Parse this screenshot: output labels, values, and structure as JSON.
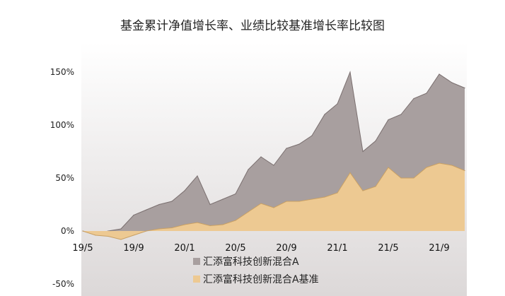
{
  "chart_data": {
    "type": "area",
    "title": "基金累计净值增长率、业绩比较基准增长率比较图",
    "xlabel": "",
    "ylabel": "",
    "ylim": [
      -50,
      150
    ],
    "yticks": [
      "150%",
      "100%",
      "50%",
      "0%",
      "-50%"
    ],
    "xticks": [
      "19/5",
      "19/9",
      "20/1",
      "20/5",
      "20/9",
      "21/1",
      "21/5",
      "21/9"
    ],
    "grid": false,
    "legend_position": "bottom",
    "colors": {
      "fund": "#a89f9f",
      "fund_line": "#7a6f6f",
      "benchmark": "#edc992",
      "benchmark_line": "#c9a064",
      "bg_top": "#ffffff",
      "bg_bottom": "#dcd8d8"
    },
    "x": [
      "19/5",
      "19/6",
      "19/7",
      "19/8",
      "19/9",
      "19/10",
      "19/11",
      "19/12",
      "20/1",
      "20/2",
      "20/3",
      "20/4",
      "20/5",
      "20/6",
      "20/7",
      "20/8",
      "20/9",
      "20/10",
      "20/11",
      "20/12",
      "21/1",
      "21/2",
      "21/3",
      "21/4",
      "21/5",
      "21/6",
      "21/7",
      "21/8",
      "21/9",
      "21/10",
      "21/11"
    ],
    "series": [
      {
        "name": "汇添富科技创新混合A",
        "values": [
          0,
          -3,
          0,
          2,
          15,
          20,
          25,
          28,
          38,
          52,
          25,
          30,
          35,
          58,
          70,
          62,
          78,
          82,
          90,
          110,
          120,
          150,
          75,
          85,
          105,
          110,
          125,
          130,
          148,
          140,
          135
        ]
      },
      {
        "name": "汇添富科技创新混合A基准",
        "values": [
          0,
          -4,
          -5,
          -8,
          -4,
          0,
          2,
          3,
          6,
          8,
          5,
          6,
          10,
          18,
          26,
          22,
          28,
          28,
          30,
          32,
          36,
          55,
          38,
          42,
          60,
          50,
          50,
          60,
          64,
          62,
          57
        ]
      }
    ]
  }
}
